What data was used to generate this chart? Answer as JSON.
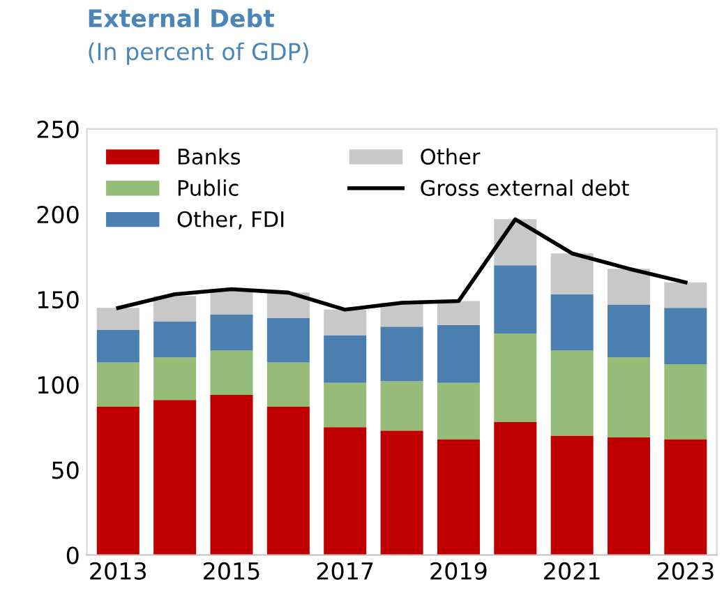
{
  "chart_data": {
    "type": "bar",
    "title": "External Debt",
    "subtitle": "(In percent of GDP)",
    "stacked": true,
    "categories": [
      "2013",
      null,
      "2015",
      null,
      "2017",
      null,
      "2019",
      null,
      "2021",
      null,
      "2023"
    ],
    "series": [
      {
        "name": "Banks",
        "color": "#c00000",
        "values": [
          87,
          91,
          94,
          87,
          75,
          73,
          68,
          78,
          70,
          69,
          68
        ]
      },
      {
        "name": "Public",
        "color": "#97bb78",
        "values": [
          26,
          25,
          26,
          26,
          26,
          29,
          33,
          52,
          50,
          47,
          44
        ]
      },
      {
        "name": "Other, FDI",
        "color": "#4a7fb0",
        "values": [
          19,
          21,
          21,
          26,
          28,
          32,
          34,
          40,
          33,
          31,
          33
        ]
      },
      {
        "name": "Other",
        "color": "#c8c8c8",
        "values": [
          13,
          15,
          14,
          15,
          15,
          14,
          14,
          27,
          24,
          21,
          15
        ]
      },
      {
        "name": "Gross external debt",
        "type": "line",
        "color": "#000000",
        "values": [
          145,
          153,
          156,
          154,
          144,
          148,
          149,
          197,
          177,
          168,
          160
        ]
      }
    ],
    "ylim": [
      0,
      250
    ],
    "yticks": [
      0,
      50,
      100,
      150,
      200,
      250
    ],
    "grid": false,
    "legend": "top left"
  }
}
